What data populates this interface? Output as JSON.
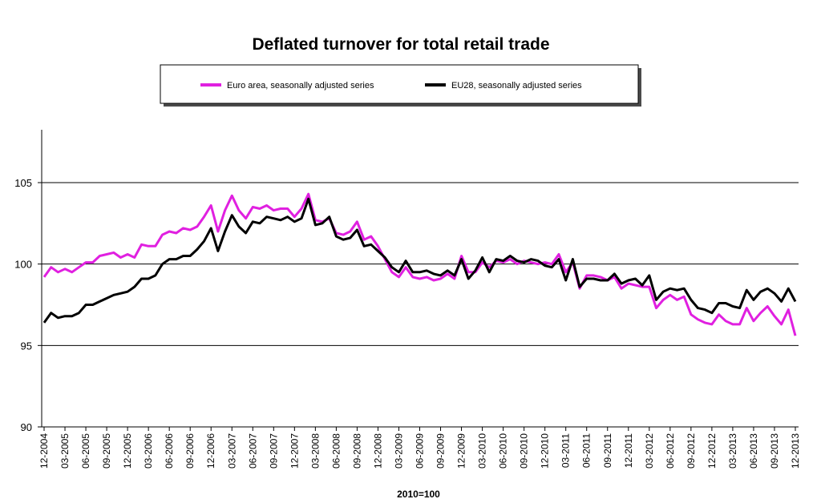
{
  "chart_data": {
    "type": "line",
    "title": "Deflated turnover for total retail trade",
    "xlabel": "2010=100",
    "ylabel": "",
    "ylim": [
      90,
      108
    ],
    "yticks": [
      90,
      95,
      100,
      105
    ],
    "grid": "horizontal",
    "legend_position": "top",
    "x_tick_labels": [
      "12-2004",
      "03-2005",
      "06-2005",
      "09-2005",
      "12-2005",
      "03-2006",
      "06-2006",
      "09-2006",
      "12-2006",
      "03-2007",
      "06-2007",
      "09-2007",
      "12-2007",
      "03-2008",
      "06-2008",
      "09-2008",
      "12-2008",
      "03-2009",
      "06-2009",
      "09-2009",
      "12-2009",
      "03-2010",
      "06-2010",
      "09-2010",
      "12-2010",
      "03-2011",
      "06-2011",
      "09-2011",
      "12-2011",
      "03-2012",
      "06-2012",
      "09-2012",
      "12-2012",
      "03-2013",
      "06-2013",
      "09-2013",
      "12-2013"
    ],
    "series": [
      {
        "name": "Euro area, seasonally adjusted series",
        "color": "#e020e0",
        "values": [
          99.2,
          99.8,
          99.5,
          99.7,
          99.5,
          99.8,
          100.1,
          100.1,
          100.5,
          100.6,
          100.7,
          100.4,
          100.6,
          100.4,
          101.2,
          101.1,
          101.1,
          101.8,
          102.0,
          101.9,
          102.2,
          102.1,
          102.3,
          102.9,
          103.6,
          102.0,
          103.3,
          104.2,
          103.3,
          102.8,
          103.5,
          103.4,
          103.6,
          103.3,
          103.4,
          103.4,
          102.9,
          103.4,
          104.3,
          102.7,
          102.6,
          102.8,
          101.9,
          101.8,
          102.0,
          102.6,
          101.5,
          101.7,
          101.1,
          100.3,
          99.5,
          99.2,
          99.8,
          99.2,
          99.1,
          99.2,
          99.0,
          99.1,
          99.4,
          99.1,
          100.5,
          99.5,
          99.5,
          100.1,
          99.8,
          100.2,
          100.1,
          100.3,
          100.0,
          100.2,
          100.1,
          100.0,
          100.1,
          100.0,
          100.6,
          99.5,
          100.1,
          98.5,
          99.3,
          99.3,
          99.2,
          99.0,
          99.2,
          98.5,
          98.8,
          98.7,
          98.6,
          98.6,
          97.3,
          97.8,
          98.1,
          97.8,
          98.0,
          96.9,
          96.6,
          96.4,
          96.3,
          96.9,
          96.5,
          96.3,
          96.3,
          97.3,
          96.5,
          97.0,
          97.4,
          96.8,
          96.3,
          97.2,
          95.6
        ]
      },
      {
        "name": "EU28, seasonally adjusted series",
        "color": "#000000",
        "values": [
          96.4,
          97.0,
          96.7,
          96.8,
          96.8,
          97.0,
          97.5,
          97.5,
          97.7,
          97.9,
          98.1,
          98.2,
          98.3,
          98.6,
          99.1,
          99.1,
          99.3,
          100.0,
          100.3,
          100.3,
          100.5,
          100.5,
          100.9,
          101.4,
          102.2,
          100.8,
          102.0,
          103.0,
          102.3,
          101.9,
          102.6,
          102.5,
          102.9,
          102.8,
          102.7,
          102.9,
          102.6,
          102.8,
          104.0,
          102.4,
          102.5,
          102.9,
          101.7,
          101.5,
          101.6,
          102.1,
          101.1,
          101.2,
          100.8,
          100.4,
          99.8,
          99.5,
          100.2,
          99.5,
          99.5,
          99.6,
          99.4,
          99.3,
          99.6,
          99.3,
          100.3,
          99.1,
          99.6,
          100.4,
          99.5,
          100.3,
          100.2,
          100.5,
          100.2,
          100.1,
          100.3,
          100.2,
          99.9,
          99.8,
          100.3,
          99.0,
          100.3,
          98.6,
          99.1,
          99.1,
          99.0,
          99.0,
          99.4,
          98.8,
          99.0,
          99.1,
          98.7,
          99.3,
          97.8,
          98.3,
          98.5,
          98.4,
          98.5,
          97.8,
          97.3,
          97.2,
          97.0,
          97.6,
          97.6,
          97.4,
          97.3,
          98.4,
          97.8,
          98.3,
          98.5,
          98.2,
          97.7,
          98.5,
          97.7
        ]
      }
    ]
  }
}
